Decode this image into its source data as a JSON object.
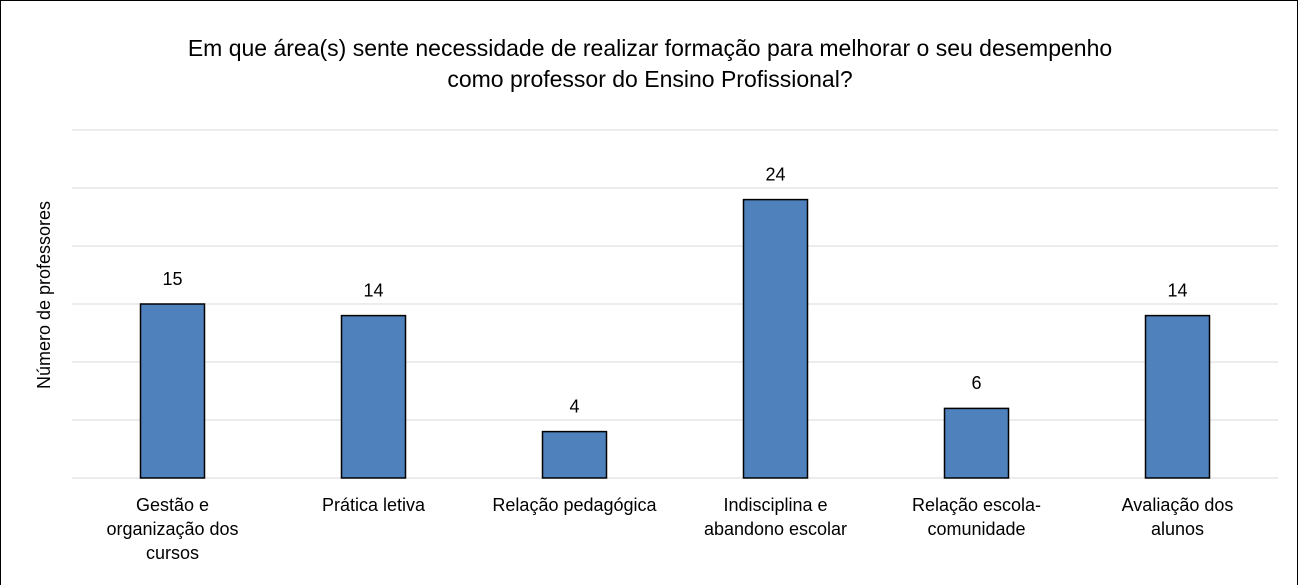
{
  "chart_data": {
    "type": "bar",
    "title": "Em que área(s) sente necessidade de realizar formação para melhorar o seu desempenho como professor do Ensino Profissional?",
    "y_label": "Número de professores",
    "categories": [
      "Gestão e organização dos cursos",
      "Prática letiva",
      "Relação pedagógica",
      "Indisciplina e abandono escolar",
      "Relação escola-comunidade",
      "Avaliação dos alunos"
    ],
    "values": [
      15,
      14,
      4,
      24,
      6,
      14
    ],
    "color": "#4f81bd",
    "ylim": [
      0,
      30
    ],
    "yticks": [
      0,
      5,
      10,
      15,
      20,
      25,
      30
    ],
    "grid": true
  }
}
